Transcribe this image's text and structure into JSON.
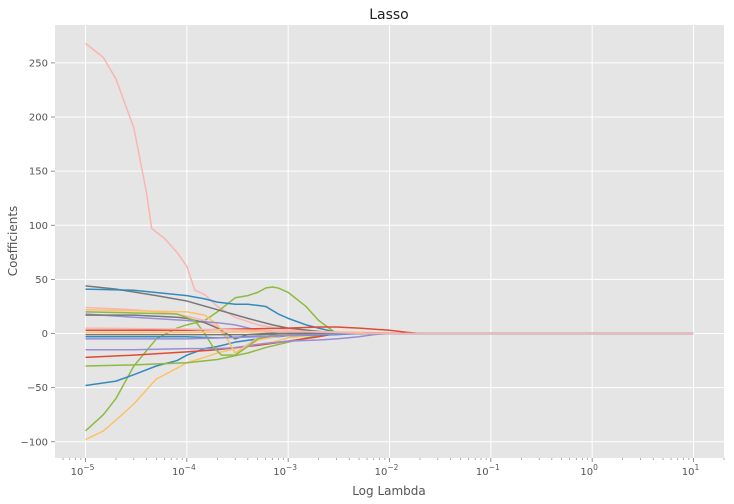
{
  "chart_data": {
    "type": "line",
    "title": "Lasso",
    "xlabel": "Log Lambda",
    "ylabel": "Coefficients",
    "x_scale": "log",
    "xlim": [
      5e-06,
      20
    ],
    "ylim": [
      -115,
      285
    ],
    "x_ticks": [
      {
        "value": 1e-05,
        "base": "10",
        "exp": "−5"
      },
      {
        "value": 0.0001,
        "base": "10",
        "exp": "−4"
      },
      {
        "value": 0.001,
        "base": "10",
        "exp": "−3"
      },
      {
        "value": 0.01,
        "base": "10",
        "exp": "−2"
      },
      {
        "value": 0.1,
        "base": "10",
        "exp": "−1"
      },
      {
        "value": 1,
        "base": "10",
        "exp": "0"
      },
      {
        "value": 10,
        "base": "10",
        "exp": "1"
      }
    ],
    "y_ticks": [
      {
        "value": 250,
        "label": "250"
      },
      {
        "value": 200,
        "label": "200"
      },
      {
        "value": 150,
        "label": "150"
      },
      {
        "value": 100,
        "label": "100"
      },
      {
        "value": 50,
        "label": "50"
      },
      {
        "value": 0,
        "label": "0"
      },
      {
        "value": -50,
        "label": "−50"
      },
      {
        "value": -100,
        "label": "−100"
      }
    ],
    "grid": true,
    "background": "#e5e5e5",
    "series": [
      {
        "color": "#fbb4b4",
        "points": [
          [
            1e-05,
            268
          ],
          [
            1.5e-05,
            255
          ],
          [
            2e-05,
            235
          ],
          [
            3e-05,
            190
          ],
          [
            4e-05,
            130
          ],
          [
            4.5e-05,
            97
          ],
          [
            6e-05,
            88
          ],
          [
            8e-05,
            75
          ],
          [
            0.0001,
            62
          ],
          [
            0.00012,
            40
          ],
          [
            0.00015,
            36
          ],
          [
            0.0002,
            25
          ],
          [
            0.0003,
            15
          ],
          [
            0.0005,
            8
          ],
          [
            0.001,
            3
          ],
          [
            0.002,
            1
          ],
          [
            0.003,
            0
          ],
          [
            10,
            0
          ]
        ]
      },
      {
        "color": "#8eba42",
        "points": [
          [
            1e-05,
            -90
          ],
          [
            1.5e-05,
            -75
          ],
          [
            2e-05,
            -60
          ],
          [
            3e-05,
            -30
          ],
          [
            5e-05,
            -5
          ],
          [
            8e-05,
            5
          ],
          [
            0.0001,
            8
          ],
          [
            0.00015,
            12
          ],
          [
            0.0002,
            20
          ],
          [
            0.0003,
            33
          ],
          [
            0.0004,
            35
          ],
          [
            0.0005,
            38
          ],
          [
            0.0006,
            42
          ],
          [
            0.0007,
            43
          ],
          [
            0.0008,
            42
          ],
          [
            0.001,
            38
          ],
          [
            0.0015,
            25
          ],
          [
            0.002,
            12
          ],
          [
            0.003,
            0
          ],
          [
            10,
            0
          ]
        ]
      },
      {
        "color": "#fdc167",
        "points": [
          [
            1e-05,
            -98
          ],
          [
            1.5e-05,
            -90
          ],
          [
            2e-05,
            -80
          ],
          [
            3e-05,
            -65
          ],
          [
            5e-05,
            -42
          ],
          [
            8e-05,
            -32
          ],
          [
            0.0001,
            -27
          ],
          [
            0.00015,
            -22
          ],
          [
            0.0002,
            -18
          ],
          [
            0.0003,
            -14
          ],
          [
            0.0005,
            -10
          ],
          [
            0.0007,
            -8
          ],
          [
            0.001,
            -4
          ],
          [
            0.0015,
            -2
          ],
          [
            0.002,
            0
          ],
          [
            10,
            0
          ]
        ]
      },
      {
        "color": "#348abd",
        "points": [
          [
            1e-05,
            -48
          ],
          [
            2e-05,
            -44
          ],
          [
            3e-05,
            -38
          ],
          [
            5e-05,
            -30
          ],
          [
            8e-05,
            -25
          ],
          [
            0.0001,
            -20
          ],
          [
            0.00015,
            -14
          ],
          [
            0.0002,
            -12
          ],
          [
            0.0003,
            -8
          ],
          [
            0.0005,
            -5
          ],
          [
            0.001,
            -2
          ],
          [
            0.002,
            0
          ],
          [
            10,
            0
          ]
        ]
      },
      {
        "color": "#8eba42",
        "points": [
          [
            1e-05,
            -30
          ],
          [
            3e-05,
            -29
          ],
          [
            0.0001,
            -27
          ],
          [
            0.0002,
            -24
          ],
          [
            0.0004,
            -18
          ],
          [
            0.0006,
            -13
          ],
          [
            0.001,
            -8
          ],
          [
            0.0015,
            -4
          ],
          [
            0.002,
            -2
          ],
          [
            0.003,
            0
          ],
          [
            10,
            0
          ]
        ]
      },
      {
        "color": "#e24a33",
        "points": [
          [
            1e-05,
            -22
          ],
          [
            3e-05,
            -20
          ],
          [
            0.0001,
            -17
          ],
          [
            0.0002,
            -15
          ],
          [
            0.0003,
            -13
          ],
          [
            0.0005,
            -11
          ],
          [
            0.001,
            -7
          ],
          [
            0.002,
            -3
          ],
          [
            0.003,
            0
          ],
          [
            10,
            0
          ]
        ]
      },
      {
        "color": "#988ed5",
        "points": [
          [
            1e-05,
            -15
          ],
          [
            3e-05,
            -15
          ],
          [
            0.0001,
            -14
          ],
          [
            0.0002,
            -14
          ],
          [
            0.0003,
            -13
          ],
          [
            0.0005,
            -10
          ],
          [
            0.0008,
            -8
          ],
          [
            0.001,
            -7
          ],
          [
            0.002,
            -6
          ],
          [
            0.003,
            -5
          ],
          [
            0.005,
            -3
          ],
          [
            0.007,
            -1
          ],
          [
            0.01,
            0
          ],
          [
            10,
            0
          ]
        ]
      },
      {
        "color": "#777777",
        "points": [
          [
            1e-05,
            44
          ],
          [
            2e-05,
            41
          ],
          [
            5e-05,
            35
          ],
          [
            0.0001,
            30
          ],
          [
            0.0002,
            22
          ],
          [
            0.0004,
            14
          ],
          [
            0.0007,
            8
          ],
          [
            0.001,
            5
          ],
          [
            0.002,
            2
          ],
          [
            0.003,
            0
          ],
          [
            10,
            0
          ]
        ]
      },
      {
        "color": "#348abd",
        "points": [
          [
            1e-05,
            41
          ],
          [
            3e-05,
            40
          ],
          [
            0.0001,
            35
          ],
          [
            0.00015,
            32
          ],
          [
            0.0002,
            29
          ],
          [
            0.0003,
            27
          ],
          [
            0.0004,
            27
          ],
          [
            0.0005,
            26
          ],
          [
            0.0006,
            25
          ],
          [
            0.0008,
            18
          ],
          [
            0.001,
            14
          ],
          [
            0.0015,
            8
          ],
          [
            0.002,
            5
          ],
          [
            0.003,
            1
          ],
          [
            0.004,
            0
          ],
          [
            10,
            0
          ]
        ]
      },
      {
        "color": "#fbb4b4",
        "points": [
          [
            1e-05,
            24
          ],
          [
            3e-05,
            22
          ],
          [
            5e-05,
            20
          ],
          [
            8e-05,
            18
          ],
          [
            0.0001,
            16
          ],
          [
            0.00015,
            12
          ],
          [
            0.0002,
            6
          ],
          [
            0.00025,
            -5
          ],
          [
            0.0003,
            -18
          ],
          [
            0.0004,
            -10
          ],
          [
            0.0005,
            -4
          ],
          [
            0.0008,
            -1
          ],
          [
            0.001,
            0
          ],
          [
            10,
            0
          ]
        ]
      },
      {
        "color": "#fdc167",
        "points": [
          [
            1e-05,
            22
          ],
          [
            3e-05,
            21
          ],
          [
            0.0001,
            20
          ],
          [
            0.00015,
            17
          ],
          [
            0.0002,
            8
          ],
          [
            0.00025,
            -5
          ],
          [
            0.0003,
            -18
          ],
          [
            0.0004,
            -12
          ],
          [
            0.0005,
            -6
          ],
          [
            0.001,
            -1
          ],
          [
            0.002,
            0
          ],
          [
            10,
            0
          ]
        ]
      },
      {
        "color": "#988ed5",
        "points": [
          [
            1e-05,
            18
          ],
          [
            3e-05,
            15
          ],
          [
            0.0001,
            12
          ],
          [
            0.0002,
            10
          ],
          [
            0.0003,
            8
          ],
          [
            0.0005,
            3
          ],
          [
            0.0008,
            0
          ],
          [
            10,
            0
          ]
        ]
      },
      {
        "color": "#777777",
        "points": [
          [
            1e-05,
            17
          ],
          [
            3e-05,
            17
          ],
          [
            8e-05,
            15
          ],
          [
            0.0001,
            14
          ],
          [
            0.00015,
            10
          ],
          [
            0.0002,
            5
          ],
          [
            0.0003,
            -5
          ],
          [
            0.0004,
            -1
          ],
          [
            0.0006,
            0
          ],
          [
            10,
            0
          ]
        ]
      },
      {
        "color": "#8eba42",
        "points": [
          [
            1e-05,
            20
          ],
          [
            3e-05,
            19
          ],
          [
            8e-05,
            18
          ],
          [
            0.00012,
            12
          ],
          [
            0.00015,
            0
          ],
          [
            0.00018,
            -12
          ],
          [
            0.00022,
            -20
          ],
          [
            0.0003,
            -20
          ],
          [
            0.0004,
            -12
          ],
          [
            0.0005,
            -5
          ],
          [
            0.0008,
            0
          ],
          [
            10,
            0
          ]
        ]
      },
      {
        "color": "#e24a33",
        "points": [
          [
            1e-05,
            3
          ],
          [
            3e-05,
            3
          ],
          [
            0.0001,
            3
          ],
          [
            0.0003,
            4
          ],
          [
            0.001,
            5
          ],
          [
            0.002,
            6
          ],
          [
            0.003,
            6
          ],
          [
            0.005,
            5
          ],
          [
            0.01,
            3
          ],
          [
            0.015,
            1
          ],
          [
            0.02,
            0
          ],
          [
            10,
            0
          ]
        ]
      },
      {
        "color": "#fdc167",
        "points": [
          [
            1e-05,
            1
          ],
          [
            0.0001,
            1
          ],
          [
            0.001,
            2
          ],
          [
            0.003,
            1.5
          ],
          [
            0.01,
            0.5
          ],
          [
            0.02,
            0
          ],
          [
            10,
            0
          ]
        ]
      },
      {
        "color": "#348abd",
        "points": [
          [
            1e-05,
            -3
          ],
          [
            0.0001,
            -3
          ],
          [
            0.0002,
            -4
          ],
          [
            0.0004,
            -3
          ],
          [
            0.001,
            -2
          ],
          [
            0.003,
            -1
          ],
          [
            0.005,
            0
          ],
          [
            10,
            0
          ]
        ]
      },
      {
        "color": "#777777",
        "points": [
          [
            1e-05,
            -1
          ],
          [
            0.0001,
            -1
          ],
          [
            0.0005,
            -1
          ],
          [
            0.001,
            0
          ],
          [
            10,
            0
          ]
        ]
      },
      {
        "color": "#988ed5",
        "points": [
          [
            1e-05,
            -5
          ],
          [
            0.0001,
            -5
          ],
          [
            0.0005,
            -3
          ],
          [
            0.001,
            -2
          ],
          [
            0.002,
            -1
          ],
          [
            0.004,
            0
          ],
          [
            10,
            0
          ]
        ]
      },
      {
        "color": "#fbb4b4",
        "points": [
          [
            1e-05,
            5
          ],
          [
            0.0001,
            4
          ],
          [
            0.0005,
            3
          ],
          [
            0.001,
            2
          ],
          [
            0.003,
            1
          ],
          [
            0.006,
            0
          ],
          [
            10,
            0
          ]
        ]
      }
    ]
  }
}
